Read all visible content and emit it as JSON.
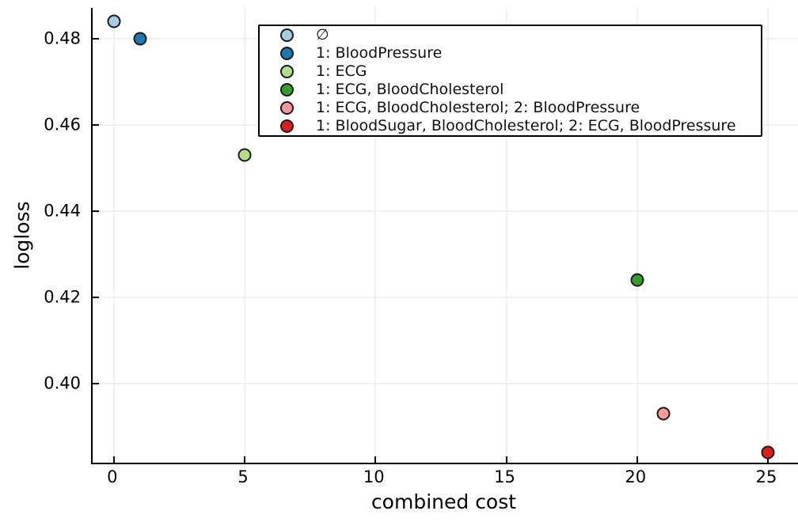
{
  "chart_data": {
    "type": "scatter",
    "title": "",
    "xlabel": "combined cost",
    "ylabel": "logloss",
    "xlim": [
      -0.81,
      26.15
    ],
    "ylim": [
      0.3817,
      0.4872
    ],
    "x_ticks": [
      0,
      5,
      10,
      15,
      20,
      25
    ],
    "x_tick_labels": [
      "0",
      "5",
      "10",
      "15",
      "20",
      "25"
    ],
    "y_ticks": [
      0.4,
      0.42,
      0.44,
      0.46,
      0.48
    ],
    "y_tick_labels": [
      "0.40",
      "0.42",
      "0.44",
      "0.46",
      "0.48"
    ],
    "grid": true,
    "grid_color": "#f0f0f0",
    "axis_color": "#000000",
    "marker_edge_color": "#1a1a1a",
    "legend_position": "upper center, inside axes",
    "series": [
      {
        "name": "∅",
        "x": 0,
        "y": 0.484,
        "color": "#a6cee3"
      },
      {
        "name": "1: BloodPressure",
        "x": 1,
        "y": 0.48,
        "color": "#1f78b4"
      },
      {
        "name": "1: ECG",
        "x": 5,
        "y": 0.453,
        "color": "#b2df8a"
      },
      {
        "name": "1: ECG, BloodCholesterol",
        "x": 20,
        "y": 0.424,
        "color": "#33a02c"
      },
      {
        "name": "1: ECG, BloodCholesterol; 2: BloodPressure",
        "x": 21,
        "y": 0.393,
        "color": "#fb9a99"
      },
      {
        "name": "1: BloodSugar, BloodCholesterol; 2: ECG, BloodPressure",
        "x": 25,
        "y": 0.384,
        "color": "#e31a1c"
      }
    ]
  }
}
